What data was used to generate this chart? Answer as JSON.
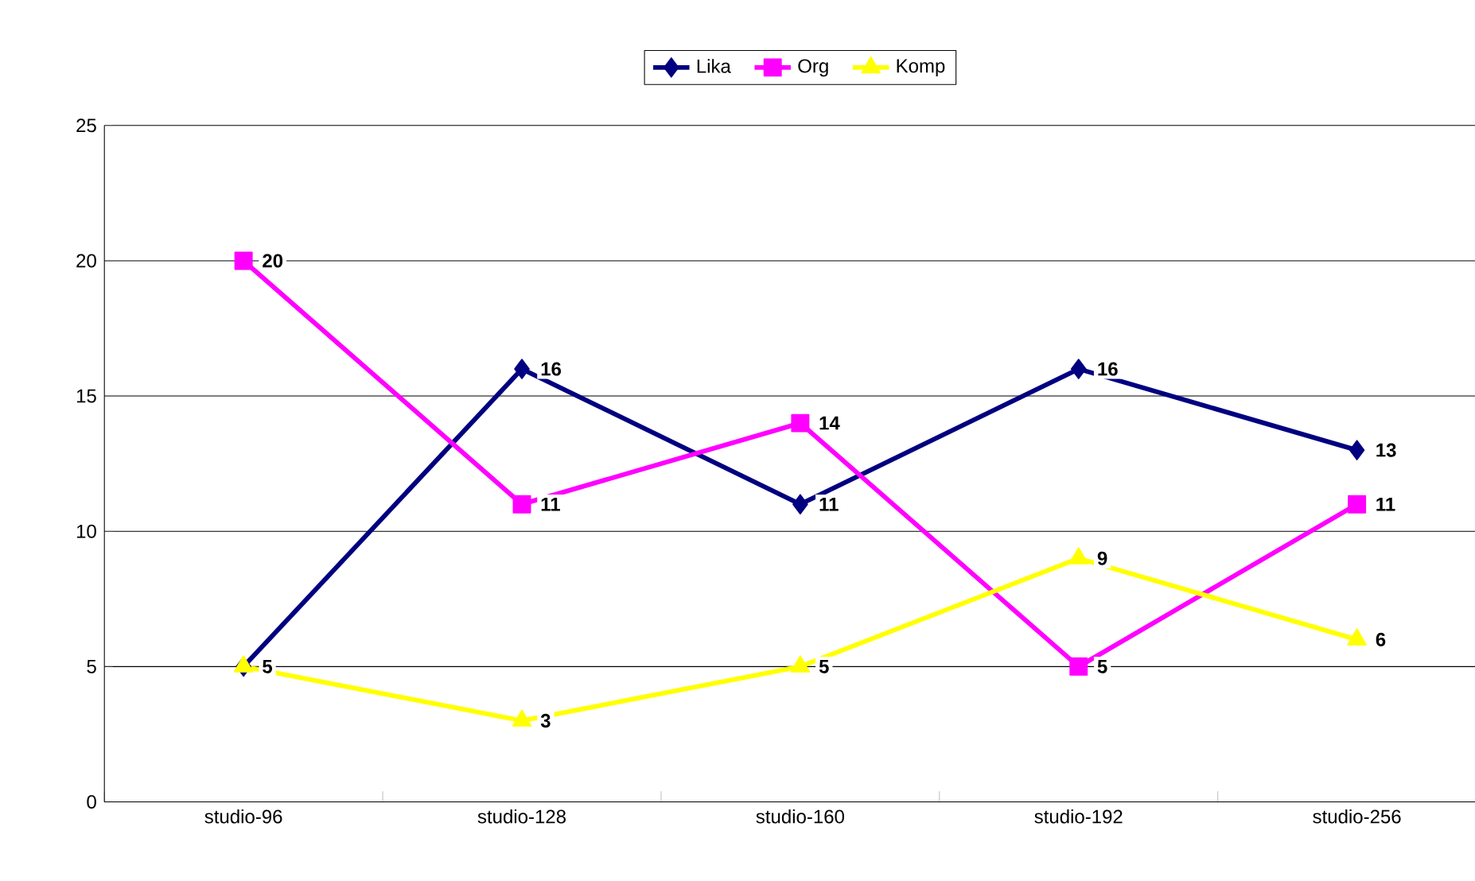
{
  "chart_data": {
    "type": "line",
    "categories": [
      "studio-96",
      "studio-128",
      "studio-160",
      "studio-192",
      "studio-256"
    ],
    "series": [
      {
        "name": "Lika",
        "color": "#000080",
        "marker": "diamond",
        "values": [
          5,
          16,
          11,
          16,
          13
        ],
        "value_labels": [
          null,
          "16",
          "11",
          "16",
          "13"
        ]
      },
      {
        "name": "Org",
        "color": "#ff00ff",
        "marker": "square",
        "values": [
          20,
          11,
          14,
          5,
          11
        ],
        "value_labels": [
          "20",
          "11",
          "14",
          "5",
          "11"
        ]
      },
      {
        "name": "Komp",
        "color": "#ffff00",
        "marker": "triangle",
        "values": [
          5,
          3,
          5,
          9,
          6
        ],
        "value_labels": [
          "5",
          "3",
          "5",
          "9",
          "6"
        ]
      }
    ],
    "ylim": [
      0,
      25
    ],
    "yticks": [
      0,
      5,
      10,
      15,
      20,
      25
    ],
    "grid": "y",
    "legend": "top"
  }
}
